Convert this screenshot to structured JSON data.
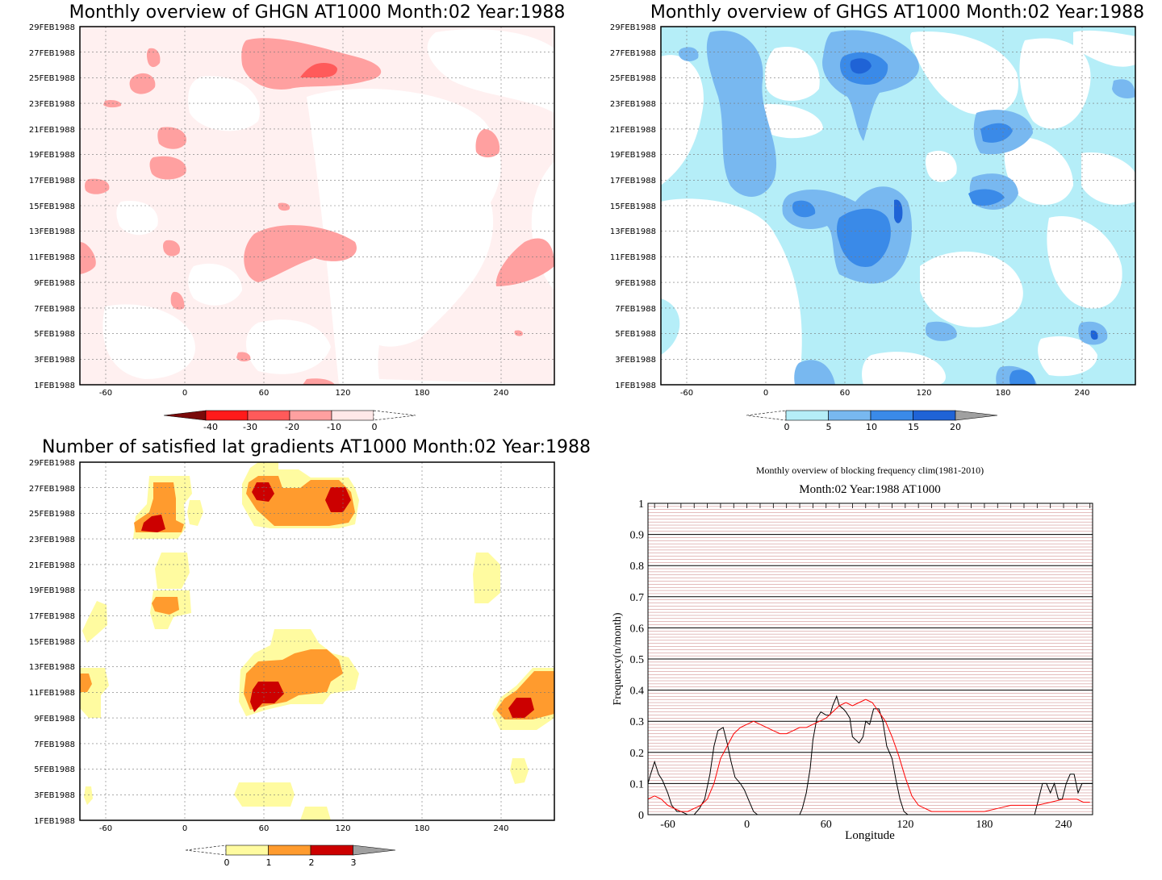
{
  "panels": {
    "ghgn": {
      "title": "Monthly overview of GHGN AT1000 Month:02 Year:1988",
      "colorbar": {
        "labels": [
          "-40",
          "-30",
          "-20",
          "-10",
          "0"
        ],
        "colors": [
          "#7a0a0a",
          "#ff1a1a",
          "#ff5a5a",
          "#ffa0a0",
          "#ffe8e8"
        ]
      }
    },
    "ghgs": {
      "title": "Monthly overview of GHGS AT1000 Month:02 Year:1988",
      "colorbar": {
        "labels": [
          "0",
          "5",
          "10",
          "15",
          "20"
        ],
        "colors": [
          "#b5eef8",
          "#78b8f0",
          "#3a8ae8",
          "#1f63d6",
          "#a0a0a0"
        ]
      }
    },
    "grad": {
      "title": "Number of satisfied lat gradients AT1000 Month:02 Year:1988",
      "colorbar": {
        "labels": [
          "0",
          "1",
          "2",
          "3"
        ],
        "colors": [
          "#fffba0",
          "#ff9b2e",
          "#cc0000",
          "#a0a0a0"
        ]
      }
    },
    "freq": {
      "title": "Monthly overview of blocking frequency clim(1981-2010)",
      "subtitle": "Month:02 Year:1988  AT1000",
      "xlabel": "Longitude",
      "ylabel": "Frequency(n/month)"
    }
  },
  "axes": {
    "date_ticks": [
      "1FEB1988",
      "3FEB1988",
      "5FEB1988",
      "7FEB1988",
      "9FEB1988",
      "11FEB1988",
      "13FEB1988",
      "15FEB1988",
      "17FEB1988",
      "19FEB1988",
      "21FEB1988",
      "23FEB1988",
      "25FEB1988",
      "27FEB1988",
      "29FEB1988"
    ],
    "lon_ticks": [
      "-60",
      "0",
      "60",
      "120",
      "180",
      "240"
    ],
    "freq_ticks": [
      "0",
      "0.1",
      "0.2",
      "0.3",
      "0.4",
      "0.5",
      "0.6",
      "0.7",
      "0.8",
      "0.9",
      "1"
    ]
  },
  "chart_data": [
    {
      "type": "heatmap",
      "title": "Monthly overview of GHGN AT1000 Month:02 Year:1988",
      "x_range": [
        -80,
        280
      ],
      "y_range": [
        "1FEB1988",
        "29FEB1988"
      ],
      "levels": [
        -40,
        -30,
        -20,
        -10,
        0
      ],
      "colors": [
        "#7a0a0a",
        "#ff1a1a",
        "#ff5a5a",
        "#ffa0a0",
        "#ffe8e8"
      ]
    },
    {
      "type": "heatmap",
      "title": "Monthly overview of GHGS AT1000 Month:02 Year:1988",
      "x_range": [
        -80,
        280
      ],
      "y_range": [
        "1FEB1988",
        "29FEB1988"
      ],
      "levels": [
        0,
        5,
        10,
        15,
        20
      ],
      "colors": [
        "#b5eef8",
        "#78b8f0",
        "#3a8ae8",
        "#1f63d6",
        "#a0a0a0"
      ]
    },
    {
      "type": "heatmap",
      "title": "Number of satisfied lat gradients AT1000 Month:02 Year:1988",
      "x_range": [
        -80,
        280
      ],
      "y_range": [
        "1FEB1988",
        "29FEB1988"
      ],
      "levels": [
        0,
        1,
        2,
        3
      ],
      "colors": [
        "#fffba0",
        "#ff9b2e",
        "#cc0000",
        "#a0a0a0"
      ]
    },
    {
      "type": "line",
      "title": "Monthly overview of blocking frequency clim(1981-2010)",
      "xlabel": "Longitude",
      "ylabel": "Frequency(n/month)",
      "xlim": [
        -75,
        262
      ],
      "ylim": [
        0,
        1
      ],
      "grid": true,
      "series": [
        {
          "color": "#000000",
          "x": [
            -75,
            -73,
            -70,
            -67,
            -64,
            -60,
            -57,
            -53,
            -50,
            -45,
            -40,
            -36,
            -32,
            -28,
            -25,
            -22,
            -18,
            -15,
            -12,
            -9,
            -5,
            -2,
            2,
            5,
            8,
            11,
            15,
            40,
            42,
            45,
            48,
            50,
            53,
            56,
            60,
            63,
            65,
            68,
            70,
            73,
            75,
            78,
            80,
            85,
            88,
            90,
            93,
            96,
            100,
            103,
            106,
            110,
            113,
            116,
            119,
            122,
            125,
            127,
            130,
            200,
            205,
            210,
            215,
            218,
            221,
            224,
            227,
            230,
            233,
            236,
            239,
            242,
            245,
            248,
            251,
            254,
            257,
            260,
            262
          ],
          "y": [
            0.1,
            0.13,
            0.17,
            0.13,
            0.11,
            0.07,
            0.03,
            0.01,
            0.01,
            0.0,
            0.0,
            0.02,
            0.05,
            0.13,
            0.22,
            0.27,
            0.28,
            0.23,
            0.17,
            0.12,
            0.1,
            0.08,
            0.04,
            0.01,
            0.0,
            0.0,
            0.0,
            0.0,
            0.02,
            0.07,
            0.15,
            0.24,
            0.31,
            0.33,
            0.32,
            0.32,
            0.35,
            0.38,
            0.35,
            0.34,
            0.33,
            0.31,
            0.25,
            0.23,
            0.25,
            0.3,
            0.29,
            0.34,
            0.34,
            0.3,
            0.22,
            0.18,
            0.11,
            0.05,
            0.01,
            0.0,
            0.0,
            0.0,
            0.0,
            0.0,
            0.0,
            0.0,
            0.0,
            0.0,
            0.05,
            0.1,
            0.1,
            0.07,
            0.1,
            0.05,
            0.05,
            0.1,
            0.13,
            0.13,
            0.07,
            0.1,
            0.1,
            0.1,
            0.1
          ]
        },
        {
          "color": "#ff0000",
          "x": [
            -75,
            -70,
            -65,
            -60,
            -55,
            -50,
            -45,
            -40,
            -35,
            -30,
            -25,
            -20,
            -15,
            -10,
            -5,
            0,
            5,
            10,
            15,
            20,
            25,
            30,
            35,
            40,
            45,
            50,
            55,
            60,
            65,
            70,
            75,
            80,
            85,
            90,
            95,
            100,
            105,
            110,
            115,
            120,
            125,
            130,
            135,
            140,
            145,
            150,
            160,
            170,
            180,
            190,
            200,
            210,
            220,
            230,
            240,
            250,
            255,
            260
          ],
          "y": [
            0.05,
            0.06,
            0.05,
            0.03,
            0.02,
            0.01,
            0.01,
            0.02,
            0.03,
            0.05,
            0.1,
            0.18,
            0.22,
            0.26,
            0.28,
            0.29,
            0.3,
            0.29,
            0.28,
            0.27,
            0.26,
            0.26,
            0.27,
            0.28,
            0.28,
            0.29,
            0.3,
            0.31,
            0.33,
            0.35,
            0.36,
            0.35,
            0.36,
            0.37,
            0.36,
            0.33,
            0.3,
            0.25,
            0.19,
            0.12,
            0.06,
            0.03,
            0.02,
            0.01,
            0.01,
            0.01,
            0.01,
            0.01,
            0.01,
            0.02,
            0.03,
            0.03,
            0.03,
            0.04,
            0.05,
            0.05,
            0.04,
            0.04
          ]
        }
      ]
    }
  ]
}
